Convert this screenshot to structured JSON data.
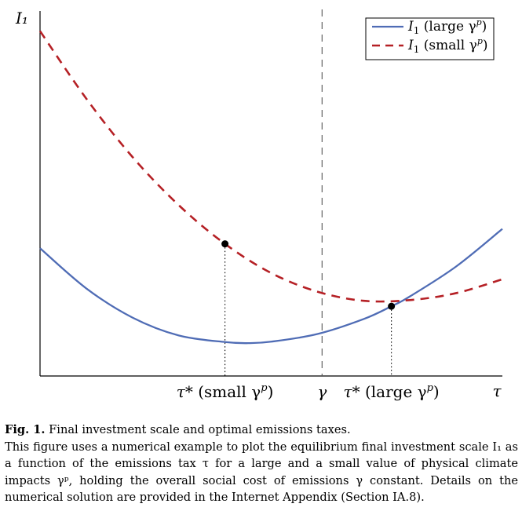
{
  "chart_data": {
    "type": "line",
    "ylabel": "I₁",
    "xlabel": "τ",
    "x_markers": [
      {
        "label_main": "τ*",
        "label_paren": "(small γ",
        "sup": "p",
        "close": ")",
        "x": 0.4
      },
      {
        "label_main": "γ",
        "x": 0.61
      },
      {
        "label_main": "τ*",
        "label_paren": "(large γ",
        "sup": "p",
        "close": ")",
        "x": 0.76
      }
    ],
    "xlim": [
      0,
      1
    ],
    "ylim": [
      0,
      1
    ],
    "grid": false,
    "legend_position": "top-right",
    "series": [
      {
        "name": "I₁ (large γᵖ)",
        "legend_main": "I",
        "legend_sub": "1",
        "legend_rest": " (large γ",
        "legend_sup": "p",
        "color": "#4f6cb5",
        "style": "solid",
        "x": [
          0.0,
          0.1,
          0.2,
          0.3,
          0.4,
          0.45,
          0.5,
          0.6,
          0.7,
          0.76,
          0.8,
          0.9,
          1.0
        ],
        "y": [
          0.35,
          0.24,
          0.16,
          0.111,
          0.093,
          0.09,
          0.094,
          0.115,
          0.156,
          0.191,
          0.218,
          0.3,
          0.403
        ]
      },
      {
        "name": "I₁ (small γᵖ)",
        "legend_main": "I",
        "legend_sub": "1",
        "legend_rest": " (small γ",
        "legend_sup": "p",
        "color": "#b52025",
        "style": "dashed",
        "x": [
          0.0,
          0.1,
          0.2,
          0.3,
          0.4,
          0.5,
          0.6,
          0.7,
          0.8,
          0.9,
          1.0
        ],
        "y": [
          0.945,
          0.76,
          0.6,
          0.468,
          0.362,
          0.282,
          0.231,
          0.206,
          0.208,
          0.227,
          0.265
        ]
      }
    ],
    "points": [
      {
        "series": "I₁ (small γᵖ)",
        "x": 0.4,
        "y": 0.362
      },
      {
        "series": "I₁ (large γᵖ)",
        "x": 0.76,
        "y": 0.191
      }
    ]
  },
  "caption": {
    "fig_label": "Fig. 1.",
    "title": "Final investment scale and optimal emissions taxes.",
    "body": "This figure uses a numerical example to plot the equilibrium final investment scale I₁ as a function of the emissions tax τ for a large and a small value of physical climate impacts γᵖ, holding the overall social cost of emissions γ constant. Details on the numerical solution are provided in the Internet Appendix (Section IA.8)."
  }
}
